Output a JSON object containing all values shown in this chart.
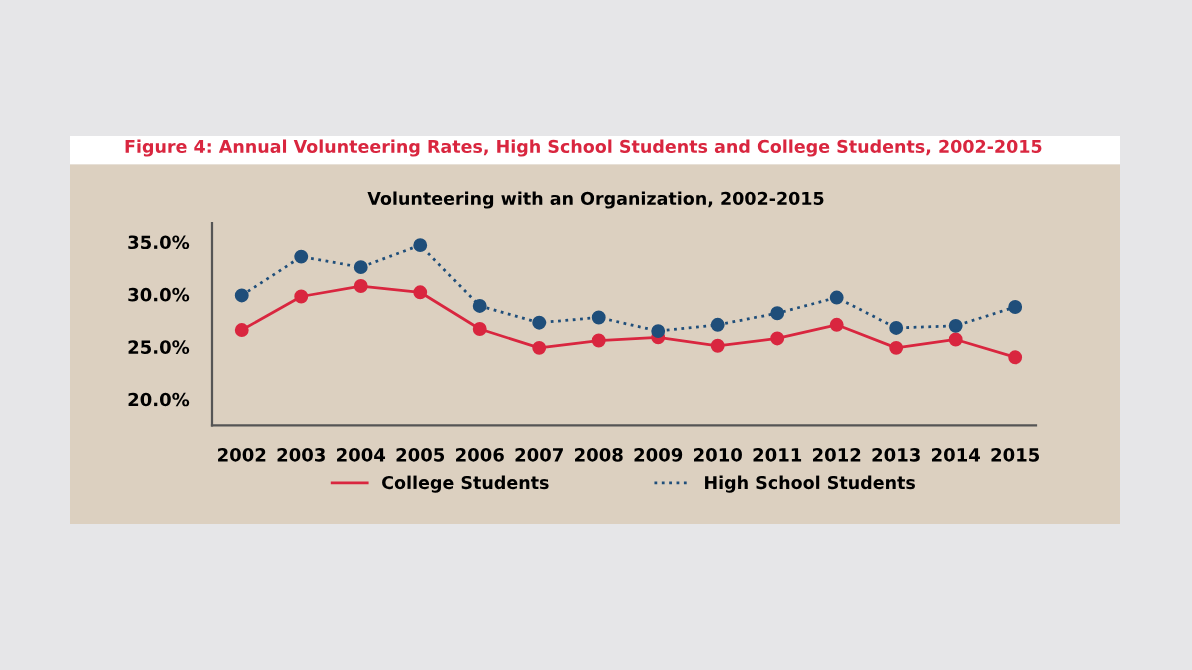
{
  "chart_data": {
    "type": "line",
    "title": "Figure 4: Annual Volunteering Rates, High School Students and College Students, 2002-2015",
    "subtitle": "Volunteering with an Organization, 2002-2015",
    "categories": [
      "2002",
      "2003",
      "2004",
      "2005",
      "2006",
      "2007",
      "2008",
      "2009",
      "2010",
      "2011",
      "2012",
      "2013",
      "2014",
      "2015"
    ],
    "series": [
      {
        "name": "College Students",
        "color": "#d9263f",
        "line_style": "solid",
        "values": [
          26.6,
          29.8,
          30.8,
          30.2,
          26.7,
          24.9,
          25.6,
          25.9,
          25.1,
          25.8,
          27.1,
          24.9,
          25.7,
          24.0
        ]
      },
      {
        "name": "High School Students",
        "color": "#1f4e7a",
        "line_style": "dotted",
        "values": [
          29.9,
          33.6,
          32.6,
          34.7,
          28.9,
          27.3,
          27.8,
          26.5,
          27.1,
          28.2,
          29.7,
          26.8,
          27.0,
          28.8
        ]
      }
    ],
    "ylim": [
      17.5,
      36.8
    ],
    "yticks": [
      {
        "value": 20,
        "label": "20.0%"
      },
      {
        "value": 25,
        "label": "25.0%"
      },
      {
        "value": 30,
        "label": "30.0%"
      },
      {
        "value": 35,
        "label": "35.0%"
      }
    ],
    "grid": false,
    "legend": "bottom",
    "marker": "circle"
  }
}
